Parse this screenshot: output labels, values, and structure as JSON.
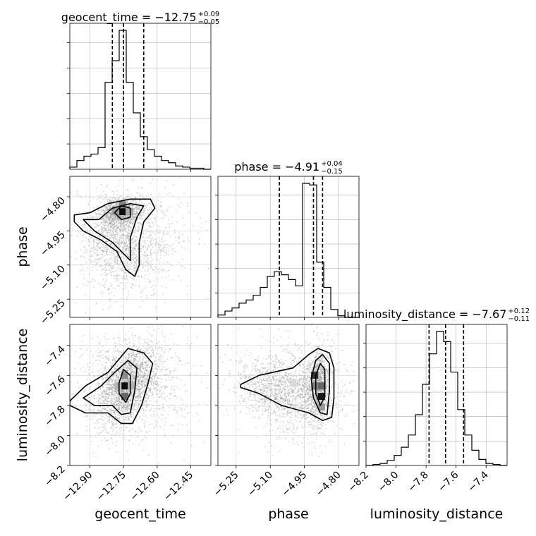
{
  "chart_data": {
    "type": "corner",
    "parameters": [
      "geocent_time",
      "phase",
      "luminosity_distance"
    ],
    "axis_labels": [
      "geocent_time",
      "phase",
      "luminosity_distance"
    ],
    "ranges": [
      [
        -12.99,
        -12.36
      ],
      [
        -5.33,
        -4.71
      ],
      [
        -8.2,
        -7.26
      ]
    ],
    "ticks": [
      [
        "−12.90",
        "−12.75",
        "−12.60",
        "−12.45"
      ],
      [
        "−5.25",
        "−5.10",
        "−4.95",
        "−4.80"
      ],
      [
        "−8.2",
        "−8.0",
        "−7.8",
        "−7.6",
        "−7.4"
      ]
    ],
    "tick_values": [
      [
        -12.9,
        -12.75,
        -12.6,
        -12.45
      ],
      [
        -5.25,
        -5.1,
        -4.95,
        -4.8
      ],
      [
        -8.2,
        -8.0,
        -7.8,
        -7.6,
        -7.4
      ]
    ],
    "titles": [
      {
        "name": "geocent_time",
        "median": "−12.75",
        "plus": "+0.09",
        "minus": "−0.05"
      },
      {
        "name": "phase",
        "median": "−4.91",
        "plus": "+0.04",
        "minus": "−0.15"
      },
      {
        "name": "luminosity_distance",
        "median": "−7.67",
        "plus": "+0.12",
        "minus": "−0.11"
      }
    ],
    "quantiles": [
      [
        -12.8,
        -12.75,
        -12.66
      ],
      [
        -5.06,
        -4.91,
        -4.87
      ],
      [
        -7.78,
        -7.67,
        -7.55
      ]
    ],
    "histograms": [
      {
        "bins": [
          -12.99,
          -12.36
        ],
        "counts": [
          2,
          8,
          12,
          14,
          20,
          80,
          100,
          128,
          80,
          52,
          30,
          18,
          12,
          8,
          6,
          3,
          2,
          1,
          1,
          0
        ]
      },
      {
        "bins": [
          -5.33,
          -4.71
        ],
        "counts": [
          3,
          8,
          12,
          18,
          22,
          28,
          38,
          52,
          58,
          54,
          48,
          40,
          170,
          168,
          70,
          38,
          10,
          2,
          0,
          0
        ]
      },
      {
        "bins": [
          -8.2,
          -7.26
        ],
        "counts": [
          0,
          1,
          2,
          5,
          10,
          18,
          30,
          50,
          80,
          110,
          132,
          122,
          92,
          55,
          30,
          15,
          6,
          2,
          1,
          0
        ]
      }
    ],
    "grid": true,
    "line_style": "dashed quantile lines"
  }
}
